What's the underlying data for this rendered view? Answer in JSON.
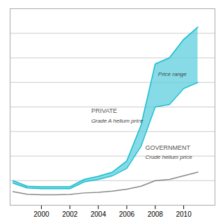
{
  "chart_data": {
    "type": "line",
    "x": [
      1998,
      1999,
      2000,
      2001,
      2002,
      2003,
      2004,
      2005,
      2006,
      2007,
      2008,
      2009,
      2010,
      2011
    ],
    "series": [
      {
        "type": "area",
        "color": "#5ECFDF",
        "low": [
          1.8,
          1.4,
          1.35,
          1.35,
          1.35,
          1.9,
          2.1,
          2.4,
          3.0,
          4.8,
          8.0,
          8.2,
          9.5,
          10.0
        ],
        "high": [
          2.0,
          1.55,
          1.5,
          1.5,
          1.5,
          2.1,
          2.35,
          2.7,
          3.6,
          6.5,
          11.5,
          12.0,
          13.5,
          14.5
        ]
      },
      {
        "type": "line",
        "color": "#18BECE",
        "values": [
          1.8,
          1.4,
          1.35,
          1.35,
          1.35,
          1.9,
          2.1,
          2.4,
          3.0,
          4.8,
          8.0,
          8.2,
          9.5,
          10.0
        ]
      },
      {
        "type": "line",
        "color": "#18BECE",
        "values": [
          2.0,
          1.55,
          1.5,
          1.5,
          1.5,
          2.1,
          2.35,
          2.7,
          3.6,
          6.5,
          11.5,
          12.0,
          13.5,
          14.5
        ]
      },
      {
        "type": "line",
        "color": "#888888",
        "values": [
          1.1,
          0.9,
          0.85,
          0.85,
          0.88,
          1.0,
          1.05,
          1.15,
          1.3,
          1.55,
          2.0,
          2.1,
          2.4,
          2.7
        ]
      }
    ],
    "annotations": [
      {
        "text": "PRIVATE",
        "x": 2003.5,
        "y": 7.5
      },
      {
        "text": "Grade A helium price",
        "x": 2003.5,
        "y": 6.7
      },
      {
        "text": "GOVERNMENT",
        "x": 2007.3,
        "y": 4.5
      },
      {
        "text": "Crude helium price",
        "x": 2007.3,
        "y": 3.8
      },
      {
        "text": "Price range",
        "x": 2008.2,
        "y": 10.5
      }
    ],
    "xlim": [
      1997.8,
      2012.2
    ],
    "xticks": [
      2000,
      2002,
      2004,
      2006,
      2008,
      2010
    ],
    "ylim": [
      0,
      16
    ],
    "yticks": [
      2,
      4,
      6,
      8,
      10,
      12,
      14,
      16
    ],
    "grid": true,
    "tick_labels": "x"
  }
}
